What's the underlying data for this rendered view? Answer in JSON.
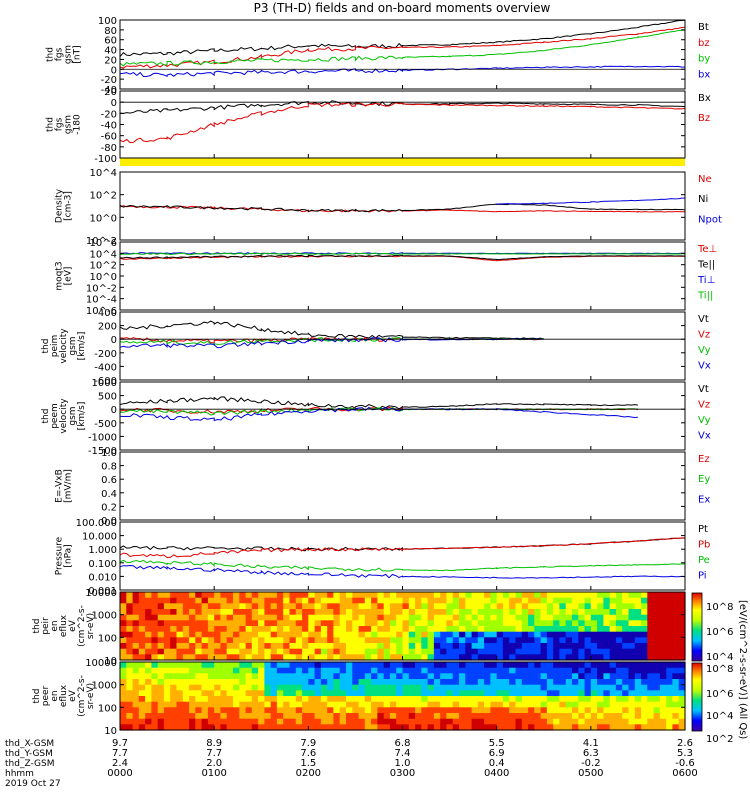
{
  "title": "P3 (TH-D) fields and on-board moments overview",
  "time_axis": {
    "tick_labels": [
      "0000",
      "0100",
      "0200",
      "0300",
      "0400",
      "0500",
      "0600"
    ],
    "rows": [
      {
        "label": "thd_X-GSM",
        "values": [
          "9.7",
          "8.9",
          "7.9",
          "6.8",
          "5.5",
          "4.1",
          "2.6"
        ]
      },
      {
        "label": "thd_Y-GSM",
        "values": [
          "7.7",
          "7.7",
          "7.6",
          "7.4",
          "6.9",
          "6.3",
          "5.3"
        ]
      },
      {
        "label": "thd_Z-GSM",
        "values": [
          "2.4",
          "2.0",
          "1.5",
          "1.0",
          "0.4",
          "-0.2",
          "-0.6"
        ]
      },
      {
        "label": "hhmm",
        "values": []
      }
    ],
    "date": "2019 Oct 27"
  },
  "colorbar": {
    "ticks": [
      "10^8",
      "10^6",
      "10^4",
      "10^2"
    ],
    "label": "[eV/(cm^2-s-sr-eV)] (All Qs)"
  },
  "panels": [
    {
      "id": "fgs",
      "ylabel": [
        "thd",
        "fgs",
        "gsm",
        "[nT]"
      ],
      "yticks": [
        "100",
        "80",
        "60",
        "40",
        "20",
        "0",
        "-20",
        "-40"
      ],
      "legend": [
        {
          "t": "Bt",
          "c": "#000000"
        },
        {
          "t": "bz",
          "c": "#e00000"
        },
        {
          "t": "by",
          "c": "#00c000"
        },
        {
          "t": "bx",
          "c": "#0000e0"
        }
      ]
    },
    {
      "id": "fgs2",
      "ylabel": [
        "thd",
        "fgs",
        "gsm",
        "-180"
      ],
      "yticks": [
        "20",
        "0",
        "-20",
        "-40",
        "-60",
        "-80",
        "-100"
      ],
      "legend": [
        {
          "t": "Bx",
          "c": "#000000"
        },
        {
          "t": "Bz",
          "c": "#e00000"
        }
      ]
    },
    {
      "id": "density",
      "ylabel": [
        "Density",
        "[cm-3]"
      ],
      "yticks": [
        "10^4",
        "10^2",
        "10^0",
        "10^-2"
      ],
      "legend": [
        {
          "t": "Ne",
          "c": "#e00000"
        },
        {
          "t": "Ni",
          "c": "#000000"
        },
        {
          "t": "Npot",
          "c": "#0000e0"
        }
      ]
    },
    {
      "id": "temp",
      "ylabel": [
        "moqt3",
        "[eV]"
      ],
      "yticks": [
        "10^6",
        "10^4",
        "10^2",
        "10^0",
        "10^-2",
        "10^-4",
        "10^-6"
      ],
      "legend": [
        {
          "t": "Te⊥",
          "c": "#e00000"
        },
        {
          "t": "Te||",
          "c": "#000000"
        },
        {
          "t": "Ti⊥",
          "c": "#0000e0"
        },
        {
          "t": "Ti||",
          "c": "#00c000"
        }
      ]
    },
    {
      "id": "peim",
      "ylabel": [
        "thd",
        "peim",
        "velocity",
        "gsm",
        "[km/s]"
      ],
      "yticks": [
        "400",
        "200",
        "0",
        "-200",
        "-400",
        "-600"
      ],
      "legend": [
        {
          "t": "Vt",
          "c": "#000000"
        },
        {
          "t": "Vz",
          "c": "#e00000"
        },
        {
          "t": "Vy",
          "c": "#00c000"
        },
        {
          "t": "Vx",
          "c": "#0000e0"
        }
      ]
    },
    {
      "id": "peem",
      "ylabel": [
        "thd",
        "peem",
        "velocity",
        "gsm",
        "[km/s]"
      ],
      "yticks": [
        "1000",
        "500",
        "0",
        "-500",
        "-1000",
        "-1500"
      ],
      "legend": [
        {
          "t": "Vt",
          "c": "#000000"
        },
        {
          "t": "Vz",
          "c": "#e00000"
        },
        {
          "t": "Vy",
          "c": "#00c000"
        },
        {
          "t": "Vx",
          "c": "#0000e0"
        }
      ]
    },
    {
      "id": "efield",
      "ylabel": [
        "E=-VxB",
        "[mV/m]"
      ],
      "yticks": [
        "1.0",
        "0.8",
        "0.6",
        "0.4",
        "0.2",
        "0.0"
      ],
      "legend": [
        {
          "t": "Ez",
          "c": "#e00000"
        },
        {
          "t": "Ey",
          "c": "#00c000"
        },
        {
          "t": "Ex",
          "c": "#0000e0"
        }
      ]
    },
    {
      "id": "pressure",
      "ylabel": [
        "Pressure",
        "[nPa]"
      ],
      "yticks": [
        "100.000",
        "10.000",
        "1.000",
        "0.100",
        "0.010",
        "0.001"
      ],
      "legend": [
        {
          "t": "Pt",
          "c": "#000000"
        },
        {
          "t": "Pb",
          "c": "#e00000"
        },
        {
          "t": "Pe",
          "c": "#00c000"
        },
        {
          "t": "Pi",
          "c": "#0000e0"
        }
      ]
    },
    {
      "id": "peir",
      "ylabel": [
        "thd",
        "peir",
        "en",
        "eflux",
        "eV",
        "(cm^2-s-",
        "sr-eV)"
      ],
      "yticks": [
        "10000",
        "1000",
        "100",
        "10"
      ],
      "legend": []
    },
    {
      "id": "peer",
      "ylabel": [
        "thd",
        "peer",
        "en",
        "eflux",
        "eV",
        "(cm^2-s-",
        "sr-eV)"
      ],
      "yticks": [
        "10000",
        "1000",
        "100",
        "10"
      ],
      "legend": []
    }
  ],
  "chart_data": {
    "type": "line",
    "title": "P3 (TH-D) fields and on-board moments overview",
    "x_range": [
      "2019-10-27 00:00",
      "2019-10-27 06:00"
    ],
    "x": [
      0,
      0.5,
      1,
      1.5,
      2,
      2.5,
      3,
      3.5,
      4,
      4.5,
      5,
      5.5,
      6
    ],
    "panels": [
      {
        "name": "fgs gsm [nT]",
        "ylim": [
          -40,
          100
        ],
        "series": [
          {
            "name": "Bt",
            "values": [
              30,
              32,
              38,
              42,
              48,
              46,
              48,
              50,
              55,
              62,
              72,
              85,
              100
            ]
          },
          {
            "name": "bz",
            "values": [
              5,
              8,
              15,
              25,
              40,
              42,
              44,
              45,
              48,
              55,
              62,
              72,
              85
            ]
          },
          {
            "name": "by",
            "values": [
              10,
              12,
              15,
              18,
              20,
              22,
              24,
              26,
              30,
              38,
              50,
              65,
              80
            ]
          },
          {
            "name": "bx",
            "values": [
              -10,
              -12,
              -8,
              -6,
              -4,
              -3,
              -2,
              0,
              2,
              4,
              5,
              6,
              5
            ]
          }
        ]
      },
      {
        "name": "fgs gsm-180 [nT]",
        "ylim": [
          -100,
          20
        ],
        "series": [
          {
            "name": "Bx",
            "values": [
              -20,
              -15,
              -10,
              -5,
              0,
              -2,
              -3,
              -3,
              -2,
              -3,
              -4,
              -5,
              -8
            ]
          },
          {
            "name": "Bz",
            "values": [
              -70,
              -65,
              -40,
              -20,
              -5,
              -4,
              -4,
              -5,
              -6,
              -7,
              -8,
              -10,
              -12
            ]
          }
        ]
      },
      {
        "name": "Density [cm-3]",
        "log": true,
        "ylim": [
          0.001,
          10000
        ],
        "series": [
          {
            "name": "Ne",
            "values": [
              3,
              2.5,
              2,
              1.5,
              1,
              1,
              1,
              1.2,
              0.8,
              1,
              0.9,
              0.8,
              0.8
            ]
          },
          {
            "name": "Ni",
            "values": [
              3,
              2.6,
              2,
              1.6,
              1.1,
              1.1,
              1.1,
              1.5,
              5,
              4,
              1.5,
              1.4,
              1.4
            ]
          },
          {
            "name": "Npot",
            "values": [
              null,
              null,
              null,
              null,
              null,
              null,
              null,
              null,
              5,
              6,
              8,
              12,
              20
            ]
          }
        ]
      },
      {
        "name": "moqt3 [eV]",
        "log": true,
        "ylim": [
          1e-06,
          1000000
        ],
        "series": [
          {
            "name": "Te⊥",
            "values": [
              1000,
              1500,
              2000,
              2500,
              3000,
              3000,
              3000,
              3000,
              500,
              2000,
              3000,
              3000,
              3000
            ]
          },
          {
            "name": "Te||",
            "values": [
              1500,
              2000,
              2500,
              3000,
              3500,
              3500,
              3500,
              3500,
              800,
              2500,
              3500,
              3500,
              3500
            ]
          },
          {
            "name": "Ti⊥",
            "values": [
              10000,
              10000,
              10000,
              10000,
              10000,
              10000,
              10000,
              10000,
              10000,
              10000,
              10000,
              10000,
              10000
            ]
          },
          {
            "name": "Ti||",
            "values": [
              8000,
              8000,
              8000,
              8000,
              8000,
              8000,
              8000,
              8000,
              8000,
              8000,
              8000,
              8000,
              8000
            ]
          }
        ]
      },
      {
        "name": "peim velocity gsm [km/s]",
        "ylim": [
          -600,
          400
        ],
        "series": [
          {
            "name": "Vt",
            "values": [
              150,
              200,
              250,
              150,
              60,
              40,
              30,
              20,
              15,
              10,
              null,
              null,
              null
            ]
          },
          {
            "name": "Vz",
            "values": [
              0,
              -20,
              -30,
              -20,
              -5,
              0,
              0,
              0,
              0,
              0,
              null,
              null,
              null
            ]
          },
          {
            "name": "Vy",
            "values": [
              -50,
              -40,
              -60,
              -20,
              -10,
              -5,
              0,
              0,
              0,
              0,
              null,
              null,
              null
            ]
          },
          {
            "name": "Vx",
            "values": [
              -100,
              -90,
              -100,
              -60,
              -20,
              -10,
              -5,
              -5,
              0,
              0,
              null,
              null,
              null
            ]
          }
        ]
      },
      {
        "name": "peem velocity gsm [km/s]",
        "ylim": [
          -1500,
          1000
        ],
        "series": [
          {
            "name": "Vt",
            "values": [
              200,
              300,
              400,
              300,
              150,
              100,
              80,
              100,
              200,
              180,
              150,
              150,
              null
            ]
          },
          {
            "name": "Vz",
            "values": [
              0,
              -50,
              -100,
              -50,
              0,
              0,
              0,
              0,
              0,
              0,
              0,
              0,
              null
            ]
          },
          {
            "name": "Vy",
            "values": [
              -50,
              -100,
              -150,
              -80,
              -20,
              0,
              0,
              0,
              0,
              0,
              0,
              0,
              null
            ]
          },
          {
            "name": "Vx",
            "values": [
              -200,
              -300,
              -400,
              -200,
              -50,
              0,
              0,
              0,
              0,
              -100,
              -200,
              -300,
              null
            ]
          }
        ]
      },
      {
        "name": "E=-VxB [mV/m]",
        "ylim": [
          0,
          1
        ],
        "series": [
          {
            "name": "Ez",
            "values": []
          },
          {
            "name": "Ey",
            "values": []
          },
          {
            "name": "Ex",
            "values": []
          }
        ]
      },
      {
        "name": "Pressure [nPa]",
        "log": true,
        "ylim": [
          0.001,
          100
        ],
        "series": [
          {
            "name": "Pt",
            "values": [
              1.3,
              1.2,
              1.2,
              1.1,
              1.0,
              1.0,
              1.0,
              1.2,
              1.4,
              1.8,
              2.5,
              4,
              7
            ]
          },
          {
            "name": "Pb",
            "values": [
              0.4,
              0.3,
              0.5,
              0.8,
              1.0,
              1.0,
              1.0,
              1.2,
              1.4,
              1.8,
              2.5,
              4,
              7
            ]
          },
          {
            "name": "Pe",
            "values": [
              0.15,
              0.1,
              0.08,
              0.05,
              0.04,
              0.035,
              0.03,
              0.028,
              0.04,
              0.05,
              0.06,
              0.07,
              0.08
            ]
          },
          {
            "name": "Pi",
            "values": [
              0.05,
              0.04,
              0.03,
              0.02,
              0.015,
              0.012,
              0.01,
              0.009,
              0.008,
              0.008,
              0.009,
              0.01,
              0.01
            ]
          }
        ]
      },
      {
        "name": "peir en eflux",
        "type": "heatmap",
        "ylim": [
          5,
          30000
        ],
        "log": true
      },
      {
        "name": "peer en eflux",
        "type": "heatmap",
        "ylim": [
          5,
          30000
        ],
        "log": true
      }
    ]
  }
}
